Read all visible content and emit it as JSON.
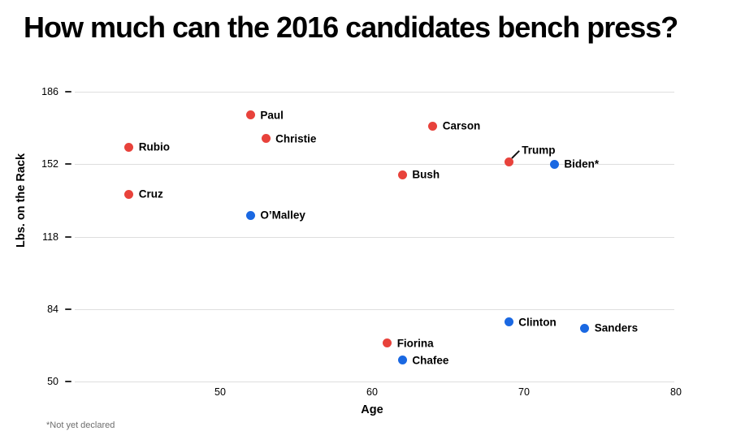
{
  "page": {
    "footnote": "*Not yet declared"
  },
  "colors": {
    "red_candidate": "#e8423b",
    "blue_candidate": "#1a68e2",
    "gridline": "#dedede",
    "axis_tick": "#2b2b2b",
    "callout_line": "#111111",
    "footnote_text": "#6e6e6e",
    "text": "#000000",
    "background": "#ffffff"
  },
  "chart_data": {
    "type": "scatter",
    "title": "How much can the 2016 candidates bench press?",
    "xlabel": "Age",
    "ylabel": "Lbs. on the Rack",
    "xlim": [
      40,
      80
    ],
    "ylim": [
      50,
      186
    ],
    "xticks": [
      50,
      60,
      70,
      80
    ],
    "yticks": [
      186,
      152,
      118,
      84,
      50
    ],
    "grid": "horizontal-only",
    "legend": "none",
    "series": [
      {
        "name": "red",
        "color": "#e8423b",
        "points": [
          {
            "label": "Rubio",
            "age": 44,
            "lbs": 160
          },
          {
            "label": "Cruz",
            "age": 44,
            "lbs": 138
          },
          {
            "label": "Paul",
            "age": 52,
            "lbs": 175
          },
          {
            "label": "Christie",
            "age": 53,
            "lbs": 164
          },
          {
            "label": "Bush",
            "age": 62,
            "lbs": 147
          },
          {
            "label": "Carson",
            "age": 64,
            "lbs": 170
          },
          {
            "label": "Trump",
            "age": 69,
            "lbs": 153,
            "label_placement": "above-callout"
          },
          {
            "label": "Fiorina",
            "age": 61,
            "lbs": 68
          }
        ]
      },
      {
        "name": "blue",
        "color": "#1a68e2",
        "points": [
          {
            "label": "O’Malley",
            "age": 52,
            "lbs": 128
          },
          {
            "label": "Biden*",
            "age": 72,
            "lbs": 152
          },
          {
            "label": "Clinton",
            "age": 69,
            "lbs": 78
          },
          {
            "label": "Sanders",
            "age": 74,
            "lbs": 75
          },
          {
            "label": "Chafee",
            "age": 62,
            "lbs": 60
          }
        ]
      }
    ]
  }
}
